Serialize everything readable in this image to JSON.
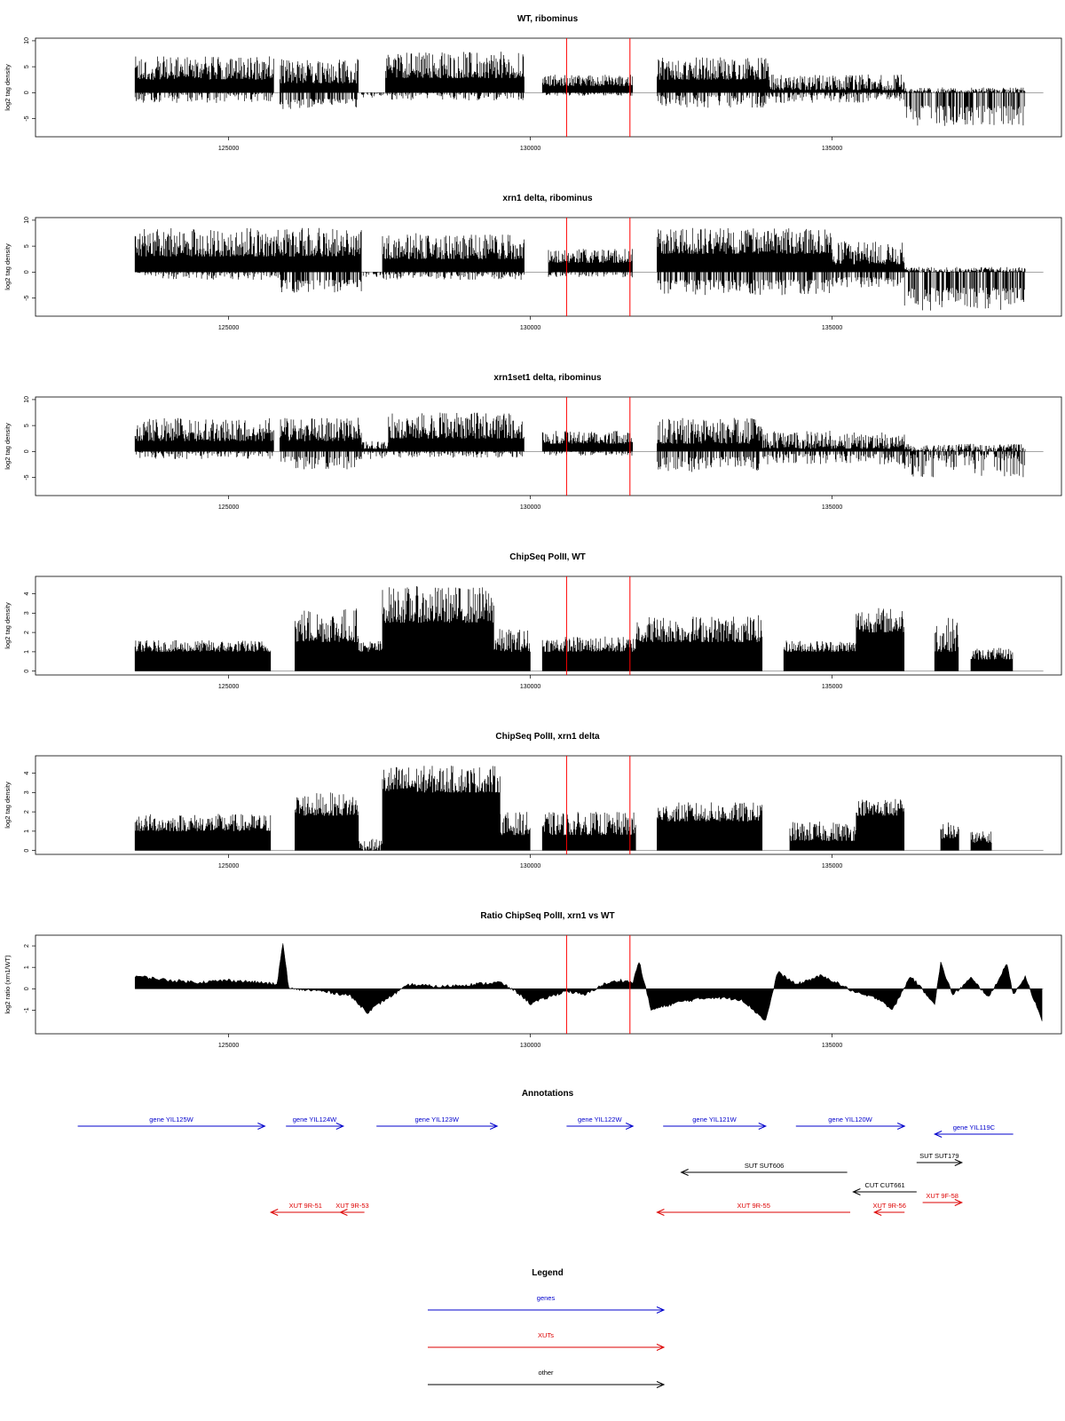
{
  "colors": {
    "gene": "#0000cc",
    "xut": "#dd0000",
    "other": "#000000",
    "marker": "#ff0000",
    "bars": "#000000"
  },
  "x_axis": {
    "range": [
      121800,
      138800
    ],
    "ticks": [
      125000,
      130000,
      135000
    ],
    "tick_labels": [
      "125000",
      "130000",
      "135000"
    ]
  },
  "markers_x": [
    130600,
    131650
  ],
  "chart_data": [
    {
      "type": "bar",
      "id": "wt",
      "title": "WT, ribominus",
      "ylabel": "log2 tag density",
      "ylim": [
        -8.5,
        10.5
      ],
      "y_ticks": [
        -5,
        0,
        5,
        10
      ],
      "y_tick_labels": [
        "-5",
        "0",
        "5",
        "10"
      ],
      "segments": [
        {
          "x": [
            123450,
            125750
          ],
          "pos": [
            2.5,
            7
          ],
          "neg": [
            0,
            2
          ]
        },
        {
          "x": [
            125850,
            127150
          ],
          "pos": [
            1.8,
            6.5
          ],
          "neg": [
            1.2,
            3.2
          ]
        },
        {
          "x": [
            127150,
            127600
          ],
          "pos": [
            0,
            0
          ],
          "neg": [
            0,
            1
          ]
        },
        {
          "x": [
            127600,
            129900
          ],
          "pos": [
            2.8,
            8
          ],
          "neg": [
            0,
            1.5
          ]
        },
        {
          "x": [
            130200,
            131700
          ],
          "pos": [
            1.3,
            3.5
          ],
          "neg": [
            0,
            0.6
          ]
        },
        {
          "x": [
            132100,
            133950
          ],
          "pos": [
            2.5,
            6.8
          ],
          "neg": [
            0.5,
            3
          ]
        },
        {
          "x": [
            133950,
            136200
          ],
          "pos": [
            0.5,
            3.5
          ],
          "neg": [
            0.2,
            2
          ]
        },
        {
          "x": [
            136200,
            138200
          ],
          "pos": [
            0,
            1
          ],
          "neg": [
            2.5,
            6.5
          ]
        }
      ]
    },
    {
      "type": "bar",
      "id": "xrn1",
      "title": "xrn1 delta, ribominus",
      "ylabel": "log2 tag density",
      "ylim": [
        -8.5,
        10.5
      ],
      "y_ticks": [
        -5,
        0,
        5,
        10
      ],
      "y_tick_labels": [
        "-5",
        "0",
        "5",
        "10"
      ],
      "segments": [
        {
          "x": [
            123450,
            125850
          ],
          "pos": [
            3,
            8.5
          ],
          "neg": [
            0,
            1.5
          ]
        },
        {
          "x": [
            125850,
            127200
          ],
          "pos": [
            3,
            8.5
          ],
          "neg": [
            1.5,
            4
          ]
        },
        {
          "x": [
            127200,
            127550
          ],
          "pos": [
            0,
            0
          ],
          "neg": [
            0,
            1.2
          ]
        },
        {
          "x": [
            127550,
            129900
          ],
          "pos": [
            2.5,
            7.5
          ],
          "neg": [
            0,
            1.5
          ]
        },
        {
          "x": [
            130300,
            131700
          ],
          "pos": [
            1.8,
            4.5
          ],
          "neg": [
            0,
            1
          ]
        },
        {
          "x": [
            132100,
            135000
          ],
          "pos": [
            3.5,
            8.5
          ],
          "neg": [
            1.5,
            4.5
          ]
        },
        {
          "x": [
            135000,
            136200
          ],
          "pos": [
            1.5,
            6
          ],
          "neg": [
            1,
            3
          ]
        },
        {
          "x": [
            136200,
            138200
          ],
          "pos": [
            0,
            1
          ],
          "neg": [
            3,
            7.5
          ]
        }
      ]
    },
    {
      "type": "bar",
      "id": "xrn1set1",
      "title": "xrn1set1 delta, ribominus",
      "ylabel": "log2 tag density",
      "ylim": [
        -8.5,
        10.5
      ],
      "y_ticks": [
        -5,
        0,
        5,
        10
      ],
      "y_tick_labels": [
        "-5",
        "0",
        "5",
        "10"
      ],
      "segments": [
        {
          "x": [
            123450,
            125750
          ],
          "pos": [
            2,
            6.5
          ],
          "neg": [
            0,
            1.5
          ]
        },
        {
          "x": [
            125850,
            127200
          ],
          "pos": [
            2,
            6.5
          ],
          "neg": [
            1,
            3.5
          ]
        },
        {
          "x": [
            127200,
            127650
          ],
          "pos": [
            0.5,
            2
          ],
          "neg": [
            0,
            1.5
          ]
        },
        {
          "x": [
            127650,
            129900
          ],
          "pos": [
            2.5,
            7.5
          ],
          "neg": [
            0,
            1.2
          ]
        },
        {
          "x": [
            130200,
            131700
          ],
          "pos": [
            1.5,
            4
          ],
          "neg": [
            0,
            0.8
          ]
        },
        {
          "x": [
            132100,
            133850
          ],
          "pos": [
            1.5,
            6.5
          ],
          "neg": [
            1,
            4
          ]
        },
        {
          "x": [
            133850,
            136200
          ],
          "pos": [
            0.5,
            4
          ],
          "neg": [
            0.5,
            2.5
          ]
        },
        {
          "x": [
            136200,
            138200
          ],
          "pos": [
            0,
            1.5
          ],
          "neg": [
            0.5,
            5
          ]
        }
      ]
    },
    {
      "type": "bar",
      "id": "polii_wt",
      "title": "ChipSeq PolII, WT",
      "ylabel": "log2 tag density",
      "ylim": [
        -0.2,
        4.9
      ],
      "y_ticks": [
        0,
        1,
        2,
        3,
        4
      ],
      "y_tick_labels": [
        "0",
        "1",
        "2",
        "3",
        "4"
      ],
      "segments": [
        {
          "x": [
            123450,
            125700
          ],
          "pos": [
            1,
            1.6
          ],
          "neg": [
            0,
            0
          ]
        },
        {
          "x": [
            126100,
            127150
          ],
          "pos": [
            1.5,
            3.3
          ],
          "neg": [
            0,
            0
          ]
        },
        {
          "x": [
            127150,
            127550
          ],
          "pos": [
            1,
            1.6
          ],
          "neg": [
            0,
            0
          ]
        },
        {
          "x": [
            127550,
            129400
          ],
          "pos": [
            2.5,
            4.4
          ],
          "neg": [
            0,
            0
          ]
        },
        {
          "x": [
            129400,
            130000
          ],
          "pos": [
            1,
            2.2
          ],
          "neg": [
            0,
            0
          ]
        },
        {
          "x": [
            130200,
            131750
          ],
          "pos": [
            1,
            1.8
          ],
          "neg": [
            0,
            0
          ]
        },
        {
          "x": [
            131750,
            133850
          ],
          "pos": [
            1.5,
            2.9
          ],
          "neg": [
            0,
            0
          ]
        },
        {
          "x": [
            134200,
            135400
          ],
          "pos": [
            1,
            1.6
          ],
          "neg": [
            0,
            0
          ]
        },
        {
          "x": [
            135400,
            136200
          ],
          "pos": [
            2,
            3.3
          ],
          "neg": [
            0,
            0
          ]
        },
        {
          "x": [
            136700,
            137100
          ],
          "pos": [
            1,
            2.8
          ],
          "neg": [
            0,
            0
          ]
        },
        {
          "x": [
            137300,
            138000
          ],
          "pos": [
            0.6,
            1.2
          ],
          "neg": [
            0,
            0
          ]
        }
      ]
    },
    {
      "type": "bar",
      "id": "polii_xrn1",
      "title": "ChipSeq PolII, xrn1 delta",
      "ylabel": "log2 tag density",
      "ylim": [
        -0.2,
        4.9
      ],
      "y_ticks": [
        0,
        1,
        2,
        3,
        4
      ],
      "y_tick_labels": [
        "0",
        "1",
        "2",
        "3",
        "4"
      ],
      "segments": [
        {
          "x": [
            123450,
            125700
          ],
          "pos": [
            1,
            1.9
          ],
          "neg": [
            0,
            0
          ]
        },
        {
          "x": [
            126100,
            127150
          ],
          "pos": [
            1.8,
            3
          ],
          "neg": [
            0,
            0
          ]
        },
        {
          "x": [
            127150,
            127550
          ],
          "pos": [
            0,
            0.6
          ],
          "neg": [
            0,
            0
          ]
        },
        {
          "x": [
            127550,
            129500
          ],
          "pos": [
            3,
            4.4
          ],
          "neg": [
            0,
            0
          ]
        },
        {
          "x": [
            129500,
            130000
          ],
          "pos": [
            0.8,
            2
          ],
          "neg": [
            0,
            0
          ]
        },
        {
          "x": [
            130200,
            131750
          ],
          "pos": [
            0.8,
            2
          ],
          "neg": [
            0,
            0
          ]
        },
        {
          "x": [
            132100,
            133850
          ],
          "pos": [
            1.5,
            2.5
          ],
          "neg": [
            0,
            0
          ]
        },
        {
          "x": [
            134300,
            135400
          ],
          "pos": [
            0.5,
            1.5
          ],
          "neg": [
            0,
            0
          ]
        },
        {
          "x": [
            135400,
            136200
          ],
          "pos": [
            1.8,
            2.7
          ],
          "neg": [
            0,
            0
          ]
        },
        {
          "x": [
            136800,
            137100
          ],
          "pos": [
            0.6,
            1.5
          ],
          "neg": [
            0,
            0
          ]
        },
        {
          "x": [
            137300,
            137650
          ],
          "pos": [
            0.4,
            1
          ],
          "neg": [
            0,
            0
          ]
        }
      ]
    },
    {
      "type": "area",
      "id": "ratio",
      "title": "Ratio ChipSeq PolII, xrn1 vs WT",
      "ylabel": "log2 ratio (xrn1/WT)",
      "ylim": [
        -2.1,
        2.5
      ],
      "y_ticks": [
        -1,
        0,
        1,
        2
      ],
      "y_tick_labels": [
        "-1",
        "0",
        "1",
        "2"
      ],
      "x": [
        123450,
        124000,
        124500,
        125000,
        125500,
        125800,
        125900,
        126000,
        126500,
        127000,
        127300,
        127600,
        128000,
        128500,
        129000,
        129500,
        129800,
        130000,
        130300,
        130600,
        130900,
        131200,
        131500,
        131700,
        131800,
        132000,
        132500,
        133000,
        133500,
        133900,
        134100,
        134400,
        134800,
        135000,
        135400,
        135800,
        136000,
        136300,
        136700,
        136800,
        137000,
        137300,
        137600,
        137900,
        138000,
        138200,
        138500
      ],
      "y": [
        0.6,
        0.4,
        0.3,
        0.4,
        0.3,
        0.2,
        2.1,
        0.0,
        -0.1,
        -0.3,
        -1.1,
        -0.5,
        0.2,
        0.1,
        0.2,
        0.3,
        -0.2,
        -0.7,
        -0.4,
        -0.1,
        -0.3,
        0.2,
        0.4,
        0.3,
        1.3,
        -1.0,
        -0.6,
        -0.4,
        -0.5,
        -1.5,
        0.8,
        0.2,
        0.6,
        0.4,
        -0.2,
        -0.5,
        -1.0,
        0.6,
        -0.7,
        1.2,
        -0.3,
        0.5,
        -0.4,
        1.2,
        -0.3,
        0.6,
        -1.7
      ]
    }
  ],
  "annotations": {
    "title": "Annotations",
    "items": [
      {
        "label": "gene YIL125W",
        "cat": "gene",
        "x1": 122500,
        "x2": 125600,
        "dir": "right",
        "row": 1
      },
      {
        "label": "gene YIL124W",
        "cat": "gene",
        "x1": 125950,
        "x2": 126900,
        "dir": "right",
        "row": 1
      },
      {
        "label": "gene YIL123W",
        "cat": "gene",
        "x1": 127450,
        "x2": 129450,
        "dir": "right",
        "row": 1
      },
      {
        "label": "gene YIL122W",
        "cat": "gene",
        "x1": 130600,
        "x2": 131700,
        "dir": "right",
        "row": 1
      },
      {
        "label": "gene YIL121W",
        "cat": "gene",
        "x1": 132200,
        "x2": 133900,
        "dir": "right",
        "row": 1
      },
      {
        "label": "gene YIL120W",
        "cat": "gene",
        "x1": 134400,
        "x2": 136200,
        "dir": "right",
        "row": 1
      },
      {
        "label": "gene YIL119C",
        "cat": "gene",
        "x1": 136700,
        "x2": 138000,
        "dir": "left",
        "row": 2
      },
      {
        "label": "SUT SUT179",
        "cat": "other",
        "x1": 136400,
        "x2": 137150,
        "dir": "right",
        "row": 3
      },
      {
        "label": "SUT SUT606",
        "cat": "other",
        "x1": 132500,
        "x2": 135250,
        "dir": "left",
        "row": 4
      },
      {
        "label": "CUT CUT661",
        "cat": "other",
        "x1": 135350,
        "x2": 136400,
        "dir": "left",
        "row": 5
      },
      {
        "label": "XUT 9F-58",
        "cat": "xut",
        "x1": 136500,
        "x2": 137150,
        "dir": "right",
        "row": 6
      },
      {
        "label": "XUT 9R-51",
        "cat": "xut",
        "x1": 125700,
        "x2": 126850,
        "dir": "left",
        "row": 7
      },
      {
        "label": "XUT 9R-53",
        "cat": "xut",
        "x1": 126850,
        "x2": 127250,
        "dir": "left",
        "row": 7
      },
      {
        "label": "XUT 9R-55",
        "cat": "xut",
        "x1": 132100,
        "x2": 135300,
        "dir": "left",
        "row": 7
      },
      {
        "label": "XUT 9R-56",
        "cat": "xut",
        "x1": 135700,
        "x2": 136200,
        "dir": "left",
        "row": 7
      }
    ]
  },
  "legend": {
    "title": "Legend",
    "entries": [
      {
        "label": "genes",
        "cat": "gene"
      },
      {
        "label": "XUTs",
        "cat": "xut"
      },
      {
        "label": "other",
        "cat": "other"
      }
    ]
  }
}
